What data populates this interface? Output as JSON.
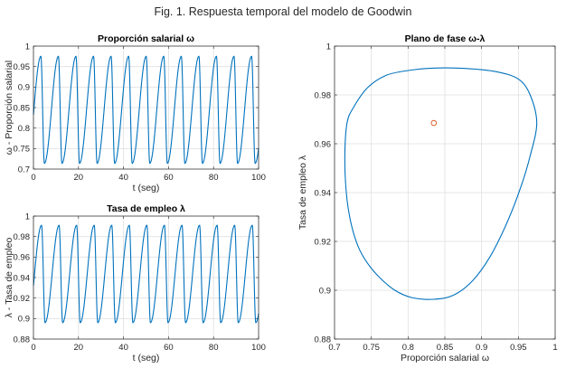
{
  "figure": {
    "title": "Fig. 1. Respuesta temporal del modelo de Goodwin"
  },
  "colors": {
    "line": "#0072BD",
    "marker": "#D95319",
    "axis": "#262626",
    "grid": "#DFDFDF"
  },
  "chart_data": [
    {
      "id": "omega",
      "type": "line",
      "title": "Proporción salarial ω",
      "xlabel": "t (seg)",
      "ylabel": "ω  -  Proporción  salarial",
      "xlim": [
        0,
        100
      ],
      "ylim": [
        0.7,
        1
      ],
      "xticks": [
        "0",
        "20",
        "40",
        "60",
        "80",
        "100"
      ],
      "yticks": [
        "0.7",
        "0.75",
        "0.8",
        "0.85",
        "0.9",
        "0.95",
        "1"
      ],
      "grid": true,
      "series": [
        {
          "min": 0.714,
          "max": 0.975,
          "period": 7.8,
          "x_first_peak": 3.3
        }
      ]
    },
    {
      "id": "lambda",
      "type": "line",
      "title": "Tasa de empleo λ",
      "xlabel": "t (seg)",
      "ylabel": "λ  -  Tasa  de  empleo",
      "xlim": [
        0,
        100
      ],
      "ylim": [
        0.88,
        1
      ],
      "xticks": [
        "0",
        "20",
        "40",
        "60",
        "80",
        "100"
      ],
      "yticks": [
        "0.88",
        "0.9",
        "0.92",
        "0.94",
        "0.96",
        "0.98",
        "1"
      ],
      "grid": true,
      "series": [
        {
          "min": 0.896,
          "max": 0.991,
          "period": 7.8,
          "x_first_peak": 3.6
        }
      ]
    },
    {
      "id": "phase",
      "type": "line",
      "title": "Plano de fase ω-λ",
      "xlabel": "Proporción  salarial  ω",
      "ylabel": "Tasa  de  empleo  λ",
      "xlim": [
        0.7,
        1
      ],
      "ylim": [
        0.88,
        1
      ],
      "xticks": [
        "0.7",
        "0.75",
        "0.8",
        "0.85",
        "0.9",
        "0.95",
        "1"
      ],
      "yticks": [
        "0.88",
        "0.9",
        "0.92",
        "0.94",
        "0.96",
        "0.98",
        "1"
      ],
      "grid": true,
      "equilibrium": {
        "x": 0.835,
        "y": 0.9685
      },
      "orbit": {
        "points": [
          [
            0.975,
            0.9685
          ],
          [
            0.966,
            0.98
          ],
          [
            0.95,
            0.9865
          ],
          [
            0.92,
            0.9895
          ],
          [
            0.88,
            0.9908
          ],
          [
            0.835,
            0.991
          ],
          [
            0.8,
            0.99
          ],
          [
            0.77,
            0.988
          ],
          [
            0.745,
            0.983
          ],
          [
            0.726,
            0.975
          ],
          [
            0.717,
            0.9685
          ],
          [
            0.714,
            0.955
          ],
          [
            0.716,
            0.94
          ],
          [
            0.722,
            0.928
          ],
          [
            0.732,
            0.918
          ],
          [
            0.745,
            0.911
          ],
          [
            0.762,
            0.905
          ],
          [
            0.782,
            0.9
          ],
          [
            0.805,
            0.897
          ],
          [
            0.835,
            0.8963
          ],
          [
            0.862,
            0.898
          ],
          [
            0.888,
            0.904
          ],
          [
            0.912,
            0.914
          ],
          [
            0.935,
            0.928
          ],
          [
            0.953,
            0.942
          ],
          [
            0.966,
            0.955
          ],
          [
            0.975,
            0.9685
          ]
        ]
      }
    }
  ]
}
